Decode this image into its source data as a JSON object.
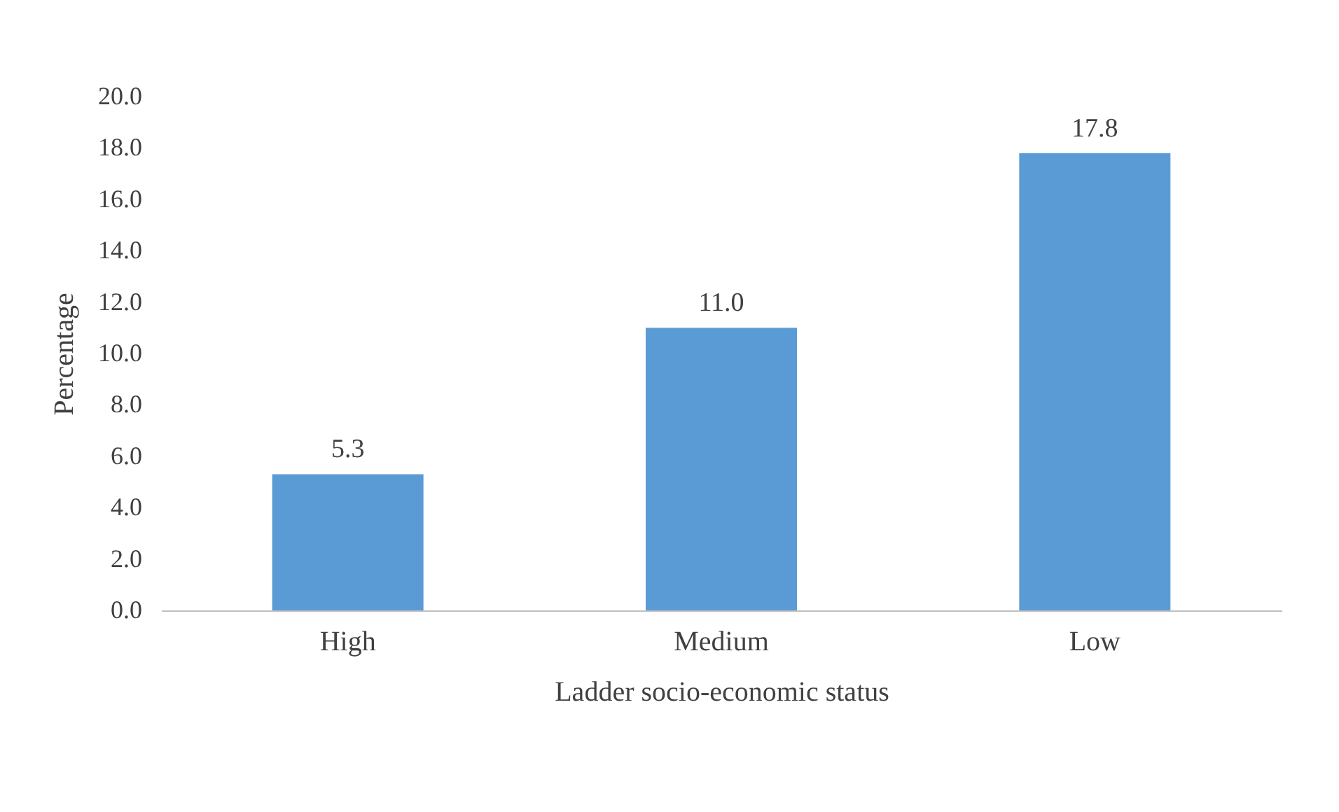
{
  "chart_data": {
    "type": "bar",
    "xlabel": "Ladder socio-economic status",
    "ylabel": "Percentage",
    "categories": [
      "High",
      "Medium",
      "Low"
    ],
    "values": [
      5.3,
      11.0,
      17.8
    ],
    "value_labels": [
      "5.3",
      "11.0",
      "17.8"
    ],
    "color": "#5b9bd5",
    "ylim": [
      0,
      20
    ],
    "yticks": [
      {
        "value": 0,
        "label": "0.0"
      },
      {
        "value": 2,
        "label": "2.0"
      },
      {
        "value": 4,
        "label": "4.0"
      },
      {
        "value": 6,
        "label": "6.0"
      },
      {
        "value": 8,
        "label": "8.0"
      },
      {
        "value": 10,
        "label": "10.0"
      },
      {
        "value": 12,
        "label": "12.0"
      },
      {
        "value": 14,
        "label": "14.0"
      },
      {
        "value": 16,
        "label": "16.0"
      },
      {
        "value": 18,
        "label": "18.0"
      },
      {
        "value": 20,
        "label": "20.0"
      }
    ],
    "grid": false
  }
}
